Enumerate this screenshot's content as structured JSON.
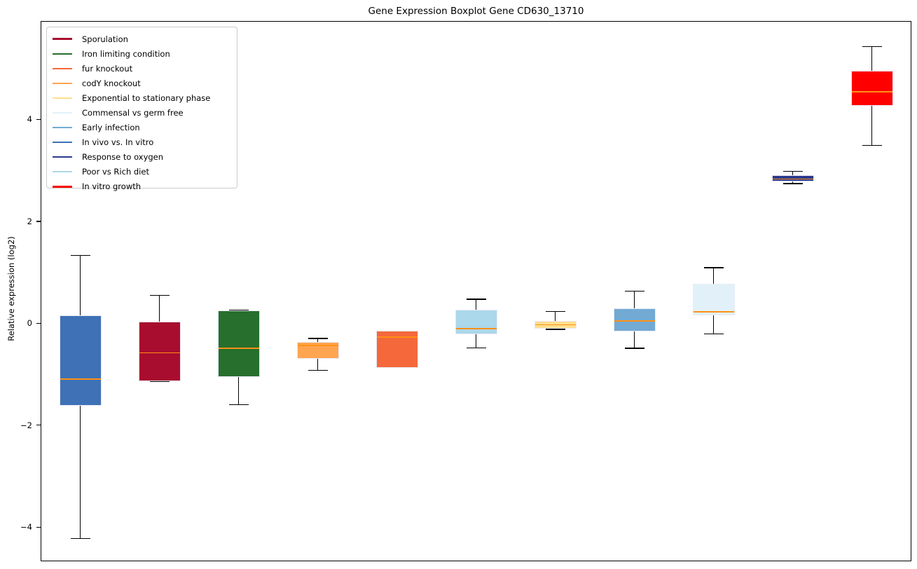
{
  "chart_data": {
    "type": "boxplot",
    "title": "Gene Expression Boxplot Gene CD630_13710",
    "ylabel": "Relative expression (log2)",
    "xlabel": "",
    "ylim": [
      -4.67,
      5.93
    ],
    "grid": false,
    "legend_position": "upper left",
    "yticks": [
      {
        "value": 4,
        "label": "4"
      },
      {
        "value": 2,
        "label": "2"
      },
      {
        "value": 0,
        "label": "0"
      },
      {
        "value": -2,
        "label": "−2"
      },
      {
        "value": -4,
        "label": "−4"
      }
    ],
    "median_color": "#ff9015",
    "legend": [
      {
        "label": "Sporulation",
        "color": "#a80c2e"
      },
      {
        "label": "Iron limiting condition",
        "color": "#276f2c"
      },
      {
        "label": "fur knockout",
        "color": "#f4683c"
      },
      {
        "label": "codY knockout",
        "color": "#ffa552"
      },
      {
        "label": "Exponential to stationary phase",
        "color": "#ffdf8e"
      },
      {
        "label": "Commensal vs germ free",
        "color": "#e2f1f9"
      },
      {
        "label": "Early infection",
        "color": "#72aad4"
      },
      {
        "label": "In vivo vs. In vitro",
        "color": "#3e71b5"
      },
      {
        "label": "Response to oxygen",
        "color": "#2d3a8c"
      },
      {
        "label": "Poor vs Rich diet",
        "color": "#abd8ea"
      },
      {
        "label": "In vitro growth",
        "color": "#ff0000"
      }
    ],
    "boxes": [
      {
        "condition": "In vivo vs. In vitro",
        "color": "#3e71b5",
        "whisker_low": -4.22,
        "q1": -1.62,
        "median": -1.09,
        "q3": 0.16,
        "whisker_high": 1.33
      },
      {
        "condition": "Sporulation",
        "color": "#a80c2e",
        "whisker_low": -1.14,
        "q1": -1.14,
        "median": -0.58,
        "q3": 0.03,
        "whisker_high": 0.55
      },
      {
        "condition": "Iron limiting condition",
        "color": "#276f2c",
        "whisker_low": -1.6,
        "q1": -1.06,
        "median": -0.49,
        "q3": 0.25,
        "whisker_high": 0.25
      },
      {
        "condition": "codY knockout",
        "color": "#ffa552",
        "whisker_low": -0.92,
        "q1": -0.69,
        "median": -0.44,
        "q3": -0.37,
        "whisker_high": -0.3
      },
      {
        "condition": "fur knockout",
        "color": "#f4683c",
        "whisker_low": -0.87,
        "q1": -0.87,
        "median": -0.27,
        "q3": -0.15,
        "whisker_high": -0.15
      },
      {
        "condition": "Poor vs Rich diet",
        "color": "#abd8ea",
        "whisker_low": -0.48,
        "q1": -0.21,
        "median": -0.1,
        "q3": 0.27,
        "whisker_high": 0.47
      },
      {
        "condition": "Exponential to stationary phase",
        "color": "#ffdf8e",
        "whisker_low": -0.12,
        "q1": -0.1,
        "median": -0.03,
        "q3": 0.05,
        "whisker_high": 0.23
      },
      {
        "condition": "Early infection",
        "color": "#72aad4",
        "whisker_low": -0.49,
        "q1": -0.16,
        "median": 0.04,
        "q3": 0.3,
        "whisker_high": 0.63
      },
      {
        "condition": "Commensal vs germ free",
        "color": "#e2f1f9",
        "whisker_low": -0.21,
        "q1": 0.16,
        "median": 0.23,
        "q3": 0.78,
        "whisker_high": 1.09
      },
      {
        "condition": "Response to oxygen",
        "color": "#2d3a8c",
        "whisker_low": 2.74,
        "q1": 2.78,
        "median": 2.83,
        "q3": 2.91,
        "whisker_high": 2.98
      },
      {
        "condition": "In vitro growth",
        "color": "#ff0000",
        "whisker_low": 3.49,
        "q1": 4.27,
        "median": 4.54,
        "q3": 4.96,
        "whisker_high": 5.43
      }
    ]
  }
}
